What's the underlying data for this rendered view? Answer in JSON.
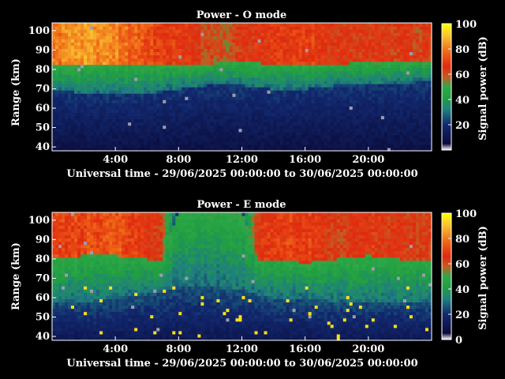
{
  "chart_data": [
    {
      "type": "heatmap",
      "title": "Power - O mode",
      "xlabel": "Universal time - 29/06/2025 00:00:00 to 30/06/2025 00:00:00",
      "ylabel": "Range (km)",
      "xlim": [
        0,
        24
      ],
      "ylim": [
        38,
        104
      ],
      "x_ticks": [
        4,
        8,
        12,
        16,
        20
      ],
      "x_tick_labels": [
        "4:00",
        "8:00",
        "12:00",
        "16:00",
        "20:00"
      ],
      "y_ticks": [
        40,
        50,
        60,
        70,
        80,
        90,
        100
      ],
      "y_tick_labels": [
        "40",
        "50",
        "60",
        "70",
        "80",
        "90",
        "100"
      ],
      "colorbar": {
        "label": "Signal power (dB)",
        "range": [
          0,
          100
        ],
        "ticks": [
          20,
          40,
          60,
          80,
          100
        ],
        "tick_labels": [
          "20",
          "40",
          "60",
          "80",
          "100"
        ]
      },
      "profile": {
        "description_hours": [
          0,
          2,
          4,
          6,
          8,
          10,
          11,
          12,
          14,
          16,
          18,
          20,
          22,
          24
        ],
        "red_layer_bottom_km": [
          82,
          83,
          83,
          82,
          82,
          83,
          84,
          84,
          83,
          83,
          83,
          84,
          84,
          84
        ],
        "green_layer_bottom_km": [
          70,
          68,
          67,
          68,
          70,
          72,
          73,
          72,
          70,
          70,
          72,
          72,
          73,
          74
        ],
        "peak_power_db": [
          78,
          85,
          82,
          72,
          68,
          60,
          58,
          64,
          68,
          70,
          65,
          64,
          64,
          62
        ],
        "background_power_db": 8
      }
    },
    {
      "type": "heatmap",
      "title": "Power - E mode",
      "xlabel": "Universal time - 29/06/2025 00:00:00 to 30/06/2025 00:00:00",
      "ylabel": "Range (km)",
      "xlim": [
        0,
        24
      ],
      "ylim": [
        38,
        104
      ],
      "x_ticks": [
        4,
        8,
        12,
        16,
        20
      ],
      "x_tick_labels": [
        "4:00",
        "8:00",
        "12:00",
        "16:00",
        "20:00"
      ],
      "y_ticks": [
        40,
        50,
        60,
        70,
        80,
        90,
        100
      ],
      "y_tick_labels": [
        "40",
        "50",
        "60",
        "70",
        "80",
        "90",
        "100"
      ],
      "colorbar": {
        "label": "Signal power (dB)",
        "range": [
          0,
          100
        ],
        "ticks": [
          0,
          20,
          40,
          60,
          80,
          100
        ],
        "tick_labels": [
          "0",
          "20",
          "40",
          "60",
          "80",
          "100"
        ]
      },
      "profile": {
        "description_hours": [
          0,
          2,
          4,
          6,
          7,
          8,
          10,
          12,
          13,
          14,
          16,
          18,
          20,
          22,
          24
        ],
        "red_layer_bottom_km": [
          80,
          82,
          82,
          80,
          80,
          104,
          104,
          104,
          80,
          80,
          78,
          80,
          82,
          80,
          80
        ],
        "green_layer_bottom_km": [
          58,
          58,
          60,
          62,
          64,
          66,
          66,
          64,
          62,
          60,
          60,
          58,
          58,
          58,
          58
        ],
        "peak_power_db": [
          70,
          72,
          74,
          68,
          60,
          20,
          18,
          22,
          66,
          70,
          70,
          62,
          66,
          64,
          62
        ],
        "background_power_db": 12,
        "speckle_power_db": 95
      }
    }
  ]
}
